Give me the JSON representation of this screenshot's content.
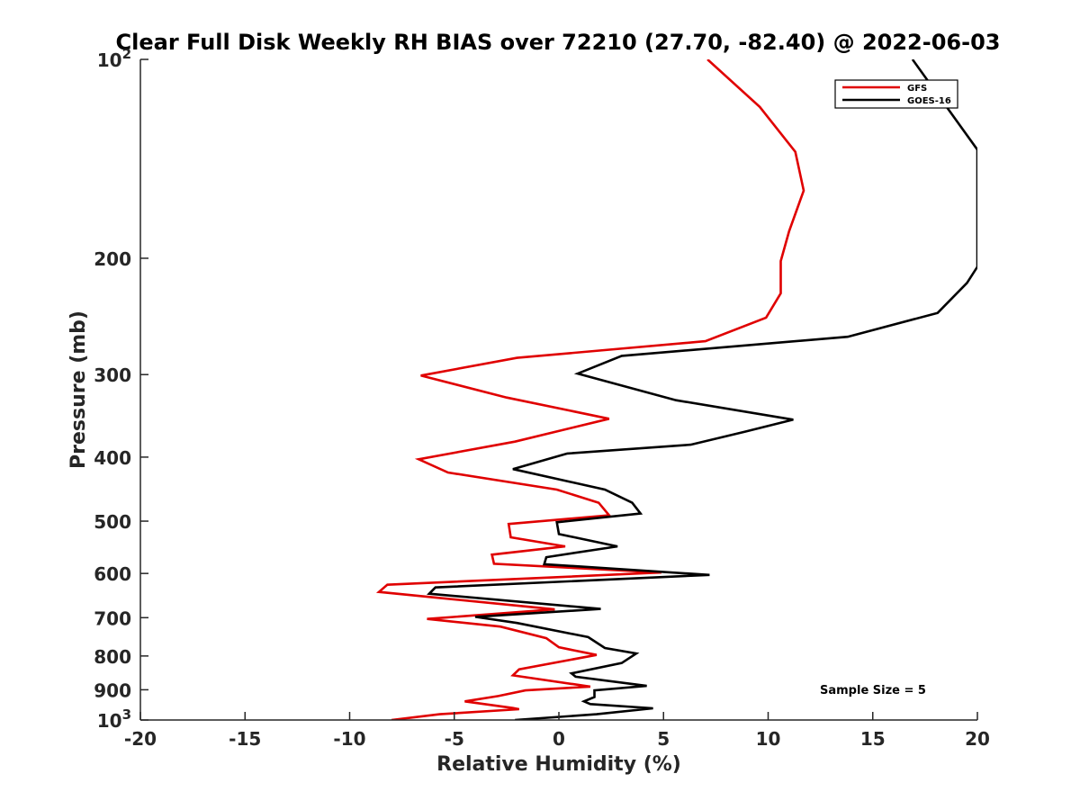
{
  "chart_data": {
    "type": "line",
    "title": "Clear Full Disk Weekly RH BIAS over 72210 (27.70, -82.40) @ 2022-06-03",
    "xlabel": "Relative Humidity (%)",
    "ylabel": "Pressure (mb)",
    "xlim": [
      -20,
      20
    ],
    "ylim": [
      100,
      1000
    ],
    "y_scale": "log",
    "y_reversed": true,
    "grid": false,
    "legend_position": "top-right",
    "x_ticks": [
      "-20",
      "-15",
      "-10",
      "-5",
      "0",
      "5",
      "10",
      "15",
      "20"
    ],
    "y_ticks": [
      {
        "value": 100,
        "label": "10",
        "sup": "2"
      },
      {
        "value": 200,
        "label": "200",
        "sup": ""
      },
      {
        "value": 300,
        "label": "300",
        "sup": ""
      },
      {
        "value": 400,
        "label": "400",
        "sup": ""
      },
      {
        "value": 500,
        "label": "500",
        "sup": ""
      },
      {
        "value": 600,
        "label": "600",
        "sup": ""
      },
      {
        "value": 700,
        "label": "700",
        "sup": ""
      },
      {
        "value": 800,
        "label": "800",
        "sup": ""
      },
      {
        "value": 900,
        "label": "900",
        "sup": ""
      },
      {
        "value": 1000,
        "label": "10",
        "sup": "3"
      }
    ],
    "annotation": "Sample Size = 5",
    "series": [
      {
        "name": "GFS",
        "color": "#e00000",
        "points": [
          [
            7.1,
            100
          ],
          [
            9.6,
            118
          ],
          [
            11.3,
            138
          ],
          [
            11.7,
            158
          ],
          [
            11.0,
            182
          ],
          [
            10.6,
            202
          ],
          [
            10.6,
            226
          ],
          [
            9.9,
            246
          ],
          [
            7.0,
            267
          ],
          [
            -2.0,
            283
          ],
          [
            -6.6,
            301
          ],
          [
            -2.5,
            325
          ],
          [
            2.4,
            350
          ],
          [
            -2.1,
            379
          ],
          [
            -6.7,
            403
          ],
          [
            -5.3,
            422
          ],
          [
            -0.1,
            448
          ],
          [
            1.9,
            469
          ],
          [
            2.4,
            490
          ],
          [
            -2.4,
            505
          ],
          [
            -2.3,
            529
          ],
          [
            0.3,
            546
          ],
          [
            -3.2,
            562
          ],
          [
            -3.1,
            580
          ],
          [
            4.9,
            598
          ],
          [
            -8.2,
            624
          ],
          [
            -8.6,
            640
          ],
          [
            -0.2,
            680
          ],
          [
            -6.3,
            703
          ],
          [
            -2.8,
            722
          ],
          [
            -0.6,
            752
          ],
          [
            -0.0,
            776
          ],
          [
            1.8,
            797
          ],
          [
            -1.9,
            838
          ],
          [
            -2.2,
            856
          ],
          [
            1.5,
            890
          ],
          [
            -1.6,
            902
          ],
          [
            -2.9,
            920
          ],
          [
            -4.5,
            937
          ],
          [
            -2.2,
            959
          ],
          [
            -1.9,
            963
          ],
          [
            -5.7,
            980
          ],
          [
            -8.0,
            1000
          ]
        ]
      },
      {
        "name": "GOES-16",
        "color": "#000000",
        "points": [
          [
            16.9,
            100
          ],
          [
            20.0,
            137
          ],
          [
            20.0,
            206
          ],
          [
            19.5,
            218
          ],
          [
            18.1,
            242
          ],
          [
            13.8,
            263
          ],
          [
            3.0,
            281
          ],
          [
            0.9,
            299
          ],
          [
            5.6,
            328
          ],
          [
            11.2,
            351
          ],
          [
            8.9,
            366
          ],
          [
            6.3,
            383
          ],
          [
            0.4,
            395
          ],
          [
            -2.2,
            417
          ],
          [
            2.2,
            448
          ],
          [
            3.5,
            469
          ],
          [
            3.9,
            487
          ],
          [
            -0.1,
            502
          ],
          [
            0.0,
            523
          ],
          [
            2.8,
            546
          ],
          [
            -0.6,
            567
          ],
          [
            -0.7,
            581
          ],
          [
            7.2,
            603
          ],
          [
            -5.9,
            630
          ],
          [
            -6.2,
            644
          ],
          [
            2.0,
            679
          ],
          [
            -4.0,
            698
          ],
          [
            -2.0,
            713
          ],
          [
            1.4,
            749
          ],
          [
            2.2,
            778
          ],
          [
            3.7,
            793
          ],
          [
            3.0,
            820
          ],
          [
            0.6,
            850
          ],
          [
            0.8,
            860
          ],
          [
            4.2,
            888
          ],
          [
            1.7,
            902
          ],
          [
            1.7,
            923
          ],
          [
            1.2,
            937
          ],
          [
            1.5,
            946
          ],
          [
            4.5,
            960
          ],
          [
            1.8,
            980
          ],
          [
            -2.1,
            1000
          ]
        ]
      }
    ]
  }
}
